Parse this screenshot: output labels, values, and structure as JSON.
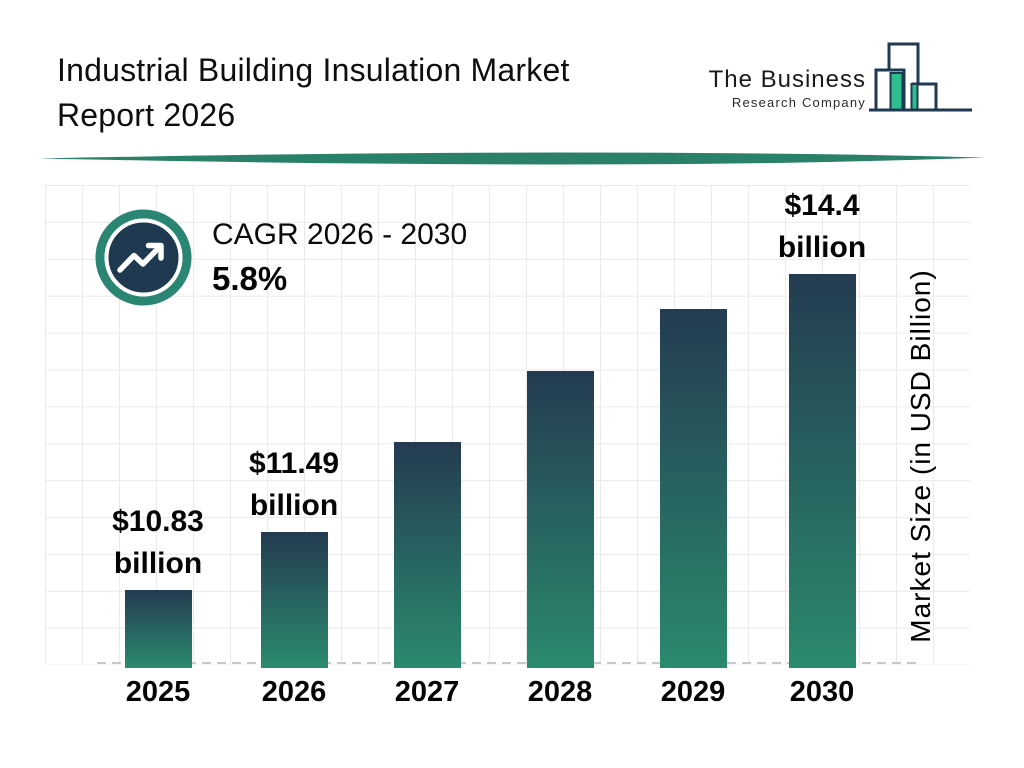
{
  "header": {
    "title_line1": "Industrial Building Insulation Market",
    "title_line2": "Report 2026",
    "logo": {
      "name_line1": "The Business",
      "name_line2": "Research Company"
    }
  },
  "cagr": {
    "label": "CAGR 2026 - 2030",
    "value": "5.8%"
  },
  "chart_data": {
    "type": "bar",
    "title": "Industrial Building Insulation Market Report 2026",
    "categories": [
      "2025",
      "2026",
      "2027",
      "2028",
      "2029",
      "2030"
    ],
    "values": [
      10.83,
      11.49,
      12.5,
      13.3,
      14.0,
      14.4
    ],
    "bar_labels": [
      {
        "amount": "$10.83",
        "unit": "billion"
      },
      {
        "amount": "$11.49",
        "unit": "billion"
      },
      {
        "amount": "",
        "unit": ""
      },
      {
        "amount": "",
        "unit": ""
      },
      {
        "amount": "",
        "unit": ""
      },
      {
        "amount": "$14.4",
        "unit": "billion"
      }
    ],
    "xlabel": "",
    "ylabel": "Market Size (in USD Billion)",
    "ylim": [
      10,
      15.4
    ],
    "grid": true,
    "legend": false,
    "annotations": [
      "CAGR 2026 - 2030: 5.8%"
    ]
  },
  "colors": {
    "navy": "#1f3a50",
    "bar_top": "#243b51",
    "bar_bottom": "#2a8a6e",
    "accent_teal": "#2a8573",
    "logo_green": "#2ebd8e",
    "grid": "#eaeaea",
    "dash": "#c8c8c8",
    "text": "#111111"
  }
}
